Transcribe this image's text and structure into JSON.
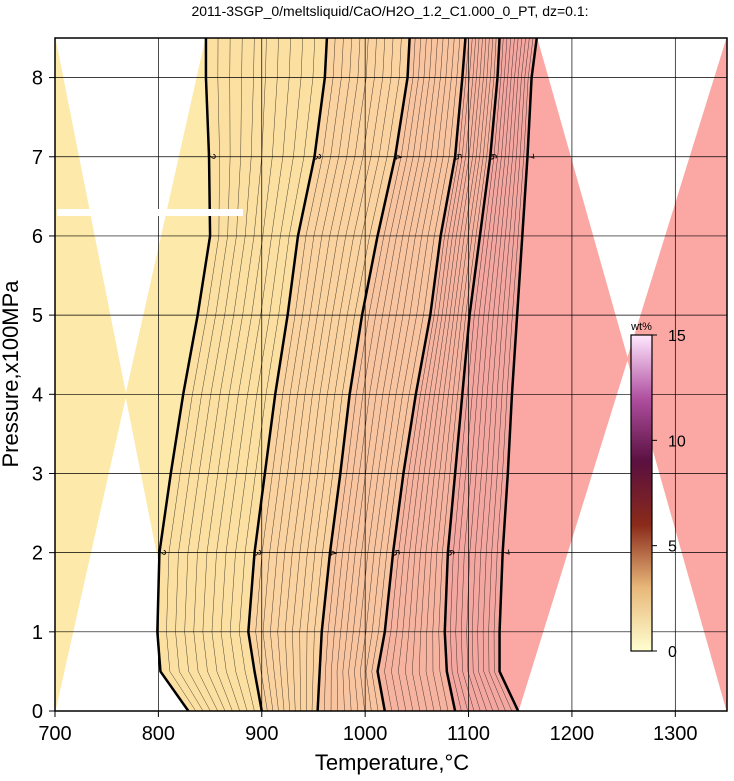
{
  "chart_data": {
    "type": "contour",
    "title": "2011-3SGP_0/meltsliquid/CaO/H2O_1.2_C1.000_0_PT, dz=0.1:",
    "xlabel": "Temperature,°C",
    "ylabel": "Pressure,x100MPa",
    "xlim": [
      700,
      1350
    ],
    "ylim": [
      0,
      8.5
    ],
    "xticks": [
      700,
      800,
      900,
      1000,
      1100,
      1200,
      1300
    ],
    "yticks": [
      0,
      1,
      2,
      3,
      4,
      5,
      6,
      7,
      8
    ],
    "grid": true,
    "pressure": [
      0,
      0.5,
      1,
      2,
      3,
      4,
      5,
      6,
      7,
      8,
      8.5
    ],
    "series": [
      {
        "name": "2",
        "values": [
          829,
          802,
          799,
          801,
          812,
          824,
          838,
          850,
          849,
          846,
          846
        ]
      },
      {
        "name": "3",
        "values": [
          900,
          893,
          887,
          893,
          903,
          913,
          925,
          935,
          951,
          961,
          963
        ]
      },
      {
        "name": "4",
        "values": [
          954,
          956,
          958,
          966,
          976,
          985,
          997,
          1012,
          1029,
          1041,
          1043
        ]
      },
      {
        "name": "5",
        "values": [
          1019,
          1012,
          1019,
          1027,
          1037,
          1049,
          1063,
          1073,
          1087,
          1094,
          1097
        ]
      },
      {
        "name": "6",
        "values": [
          1087,
          1079,
          1077,
          1080,
          1087,
          1094,
          1101,
          1111,
          1121,
          1128,
          1130
        ]
      },
      {
        "name": "7",
        "values": [
          1148,
          1130,
          1130,
          1133,
          1138,
          1142,
          1147,
          1152,
          1157,
          1161,
          1166
        ]
      }
    ],
    "fill_colors": [
      "#fde9a9",
      "#fce0a2",
      "#fbd3a0",
      "#f9c4a0",
      "#f6b4a0",
      "#f3a7a0",
      "#fba8a4"
    ],
    "colorbar": {
      "label": "wt%",
      "lim": [
        0,
        15
      ],
      "ticks": [
        0,
        5,
        10,
        15
      ],
      "colors": [
        "#ffffd0",
        "#e8b87a",
        "#8a2a1a",
        "#5a1040",
        "#b050a0",
        "#ffe8ff"
      ]
    }
  }
}
